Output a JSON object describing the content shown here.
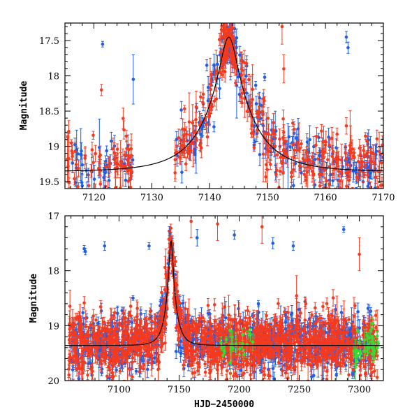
{
  "chart_data": [
    {
      "type": "scatter",
      "panel": "top",
      "title": "",
      "xlabel": "",
      "ylabel": "Magnitude",
      "xlim": [
        7115,
        7170
      ],
      "ylim": [
        19.6,
        17.25
      ],
      "y_inverted": true,
      "xticks": [
        7120,
        7130,
        7140,
        7150,
        7160,
        7170
      ],
      "yticks": [
        17.5,
        18,
        18.5,
        19,
        19.5
      ],
      "model_curve": {
        "name": "microlensing model",
        "baseline": 19.36,
        "peak_mag": 17.45,
        "t0": 7143.3,
        "tE": 8.0
      },
      "series": [
        {
          "name": "blue",
          "color": "#1f5fe8",
          "scatter": 0.35,
          "segments": [
            {
              "start": 7116,
              "end": 7127,
              "count": 45
            },
            {
              "start": 7134,
              "end": 7160,
              "count": 150
            },
            {
              "start": 7160,
              "end": 7170,
              "count": 60
            }
          ],
          "outliers": [
            {
              "x": 7121.5,
              "y": 17.55,
              "err": 0.04
            },
            {
              "x": 7126.8,
              "y": 18.05,
              "err": 0.35
            },
            {
              "x": 7139.5,
              "y": 17.85,
              "err": 0.08
            },
            {
              "x": 7149.5,
              "y": 18.02,
              "err": 0.05
            },
            {
              "x": 7163.6,
              "y": 17.45,
              "err": 0.08
            },
            {
              "x": 7163.9,
              "y": 17.6,
              "err": 0.08
            }
          ]
        },
        {
          "name": "red",
          "color": "#f53a1f",
          "scatter": 0.4,
          "segments": [
            {
              "start": 7115,
              "end": 7127,
              "count": 75
            },
            {
              "start": 7134,
              "end": 7170,
              "count": 300
            }
          ],
          "outliers": [
            {
              "x": 7121.3,
              "y": 18.2,
              "err": 0.08
            },
            {
              "x": 7152.5,
              "y": 17.3,
              "err": 0.25
            },
            {
              "x": 7152.8,
              "y": 17.9,
              "err": 0.2
            }
          ]
        }
      ]
    },
    {
      "type": "scatter",
      "panel": "bottom",
      "title": "",
      "xlabel": "HJD−2450000",
      "ylabel": "Magnitude",
      "xlim": [
        7055,
        7320
      ],
      "ylim": [
        20,
        17
      ],
      "y_inverted": true,
      "xticks": [
        7100,
        7150,
        7200,
        7250,
        7300
      ],
      "yticks": [
        17,
        18,
        19,
        20
      ],
      "model_curve": {
        "name": "microlensing model",
        "baseline": 19.36,
        "peak_mag": 17.45,
        "t0": 7143.3,
        "tE": 8.0
      },
      "series": [
        {
          "name": "blue",
          "color": "#1f5fe8",
          "scatter": 0.45,
          "segments": [
            {
              "start": 7060,
              "end": 7310,
              "count": 900
            }
          ],
          "outliers": [
            {
              "x": 7071,
              "y": 17.6,
              "err": 0.06
            },
            {
              "x": 7072,
              "y": 17.65,
              "err": 0.06
            },
            {
              "x": 7088,
              "y": 17.55,
              "err": 0.08
            },
            {
              "x": 7125,
              "y": 17.55,
              "err": 0.06
            },
            {
              "x": 7165,
              "y": 17.4,
              "err": 0.15
            },
            {
              "x": 7196,
              "y": 17.35,
              "err": 0.08
            },
            {
              "x": 7228,
              "y": 17.5,
              "err": 0.1
            },
            {
              "x": 7245,
              "y": 17.55,
              "err": 0.08
            },
            {
              "x": 7287,
              "y": 17.25,
              "err": 0.05
            }
          ]
        },
        {
          "name": "red",
          "color": "#f53a1f",
          "scatter": 0.5,
          "segments": [
            {
              "start": 7058,
              "end": 7315,
              "count": 1300
            }
          ],
          "outliers": [
            {
              "x": 7160,
              "y": 17.1,
              "err": 0.3
            },
            {
              "x": 7182,
              "y": 17.15,
              "err": 0.3
            },
            {
              "x": 7219,
              "y": 17.2,
              "err": 0.3
            },
            {
              "x": 7300,
              "y": 17.7,
              "err": 0.3
            }
          ]
        },
        {
          "name": "green",
          "color": "#33dd33",
          "scatter": 0.25,
          "segments": [
            {
              "start": 7183,
              "end": 7212,
              "count": 25
            },
            {
              "start": 7295,
              "end": 7316,
              "count": 35
            }
          ],
          "outliers": []
        }
      ]
    }
  ]
}
